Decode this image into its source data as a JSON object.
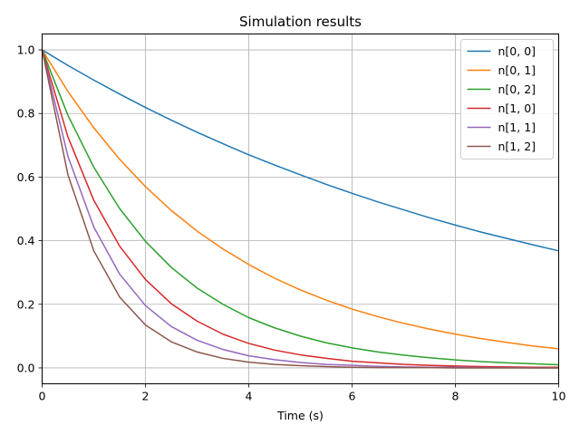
{
  "chart_data": {
    "type": "line",
    "title": "Simulation results",
    "xlabel": "Time (s)",
    "ylabel": "",
    "xlim": [
      0,
      10
    ],
    "ylim": [
      -0.05,
      1.05
    ],
    "xticks": [
      0,
      2,
      4,
      6,
      8,
      10
    ],
    "yticks": [
      0.0,
      0.2,
      0.4,
      0.6,
      0.8,
      1.0
    ],
    "xtick_labels": [
      "0",
      "2",
      "4",
      "6",
      "8",
      "10"
    ],
    "ytick_labels": [
      "0.0",
      "0.2",
      "0.4",
      "0.6",
      "0.8",
      "1.0"
    ],
    "grid": true,
    "legend_position": "top-right",
    "x": [
      0,
      0.5,
      1,
      1.5,
      2,
      2.5,
      3,
      3.5,
      4,
      4.5,
      5,
      5.5,
      6,
      6.5,
      7,
      7.5,
      8,
      8.5,
      9,
      9.5,
      10
    ],
    "series": [
      {
        "name": "n[0, 0]",
        "color": "#1f77b4",
        "values": [
          1.0,
          0.951,
          0.905,
          0.861,
          0.819,
          0.779,
          0.741,
          0.705,
          0.67,
          0.638,
          0.607,
          0.577,
          0.549,
          0.522,
          0.497,
          0.472,
          0.449,
          0.427,
          0.407,
          0.387,
          0.368
        ]
      },
      {
        "name": "n[0, 1]",
        "color": "#ff7f0e",
        "values": [
          1.0,
          0.869,
          0.755,
          0.656,
          0.57,
          0.495,
          0.43,
          0.374,
          0.325,
          0.282,
          0.245,
          0.213,
          0.185,
          0.161,
          0.14,
          0.122,
          0.106,
          0.092,
          0.08,
          0.069,
          0.06
        ]
      },
      {
        "name": "n[0, 2]",
        "color": "#2ca02c",
        "values": [
          1.0,
          0.794,
          0.631,
          0.501,
          0.398,
          0.316,
          0.251,
          0.2,
          0.158,
          0.126,
          0.1,
          0.079,
          0.063,
          0.05,
          0.04,
          0.032,
          0.025,
          0.02,
          0.016,
          0.013,
          0.01
        ]
      },
      {
        "name": "n[1, 0]",
        "color": "#d62728",
        "values": [
          1.0,
          0.726,
          0.527,
          0.383,
          0.278,
          0.202,
          0.147,
          0.106,
          0.077,
          0.056,
          0.041,
          0.03,
          0.021,
          0.016,
          0.011,
          0.008,
          0.006,
          0.004,
          0.003,
          0.002,
          0.002
        ]
      },
      {
        "name": "n[1, 1]",
        "color": "#9467bd",
        "values": [
          1.0,
          0.665,
          0.443,
          0.295,
          0.196,
          0.13,
          0.087,
          0.058,
          0.038,
          0.026,
          0.017,
          0.011,
          0.008,
          0.005,
          0.003,
          0.002,
          0.002,
          0.001,
          0.001,
          0.0,
          0.0
        ]
      },
      {
        "name": "n[1, 2]",
        "color": "#8c564b",
        "values": [
          1.0,
          0.607,
          0.368,
          0.223,
          0.135,
          0.082,
          0.05,
          0.03,
          0.018,
          0.011,
          0.007,
          0.004,
          0.002,
          0.001,
          0.001,
          0.001,
          0.0,
          0.0,
          0.0,
          0.0,
          0.0
        ]
      }
    ]
  }
}
